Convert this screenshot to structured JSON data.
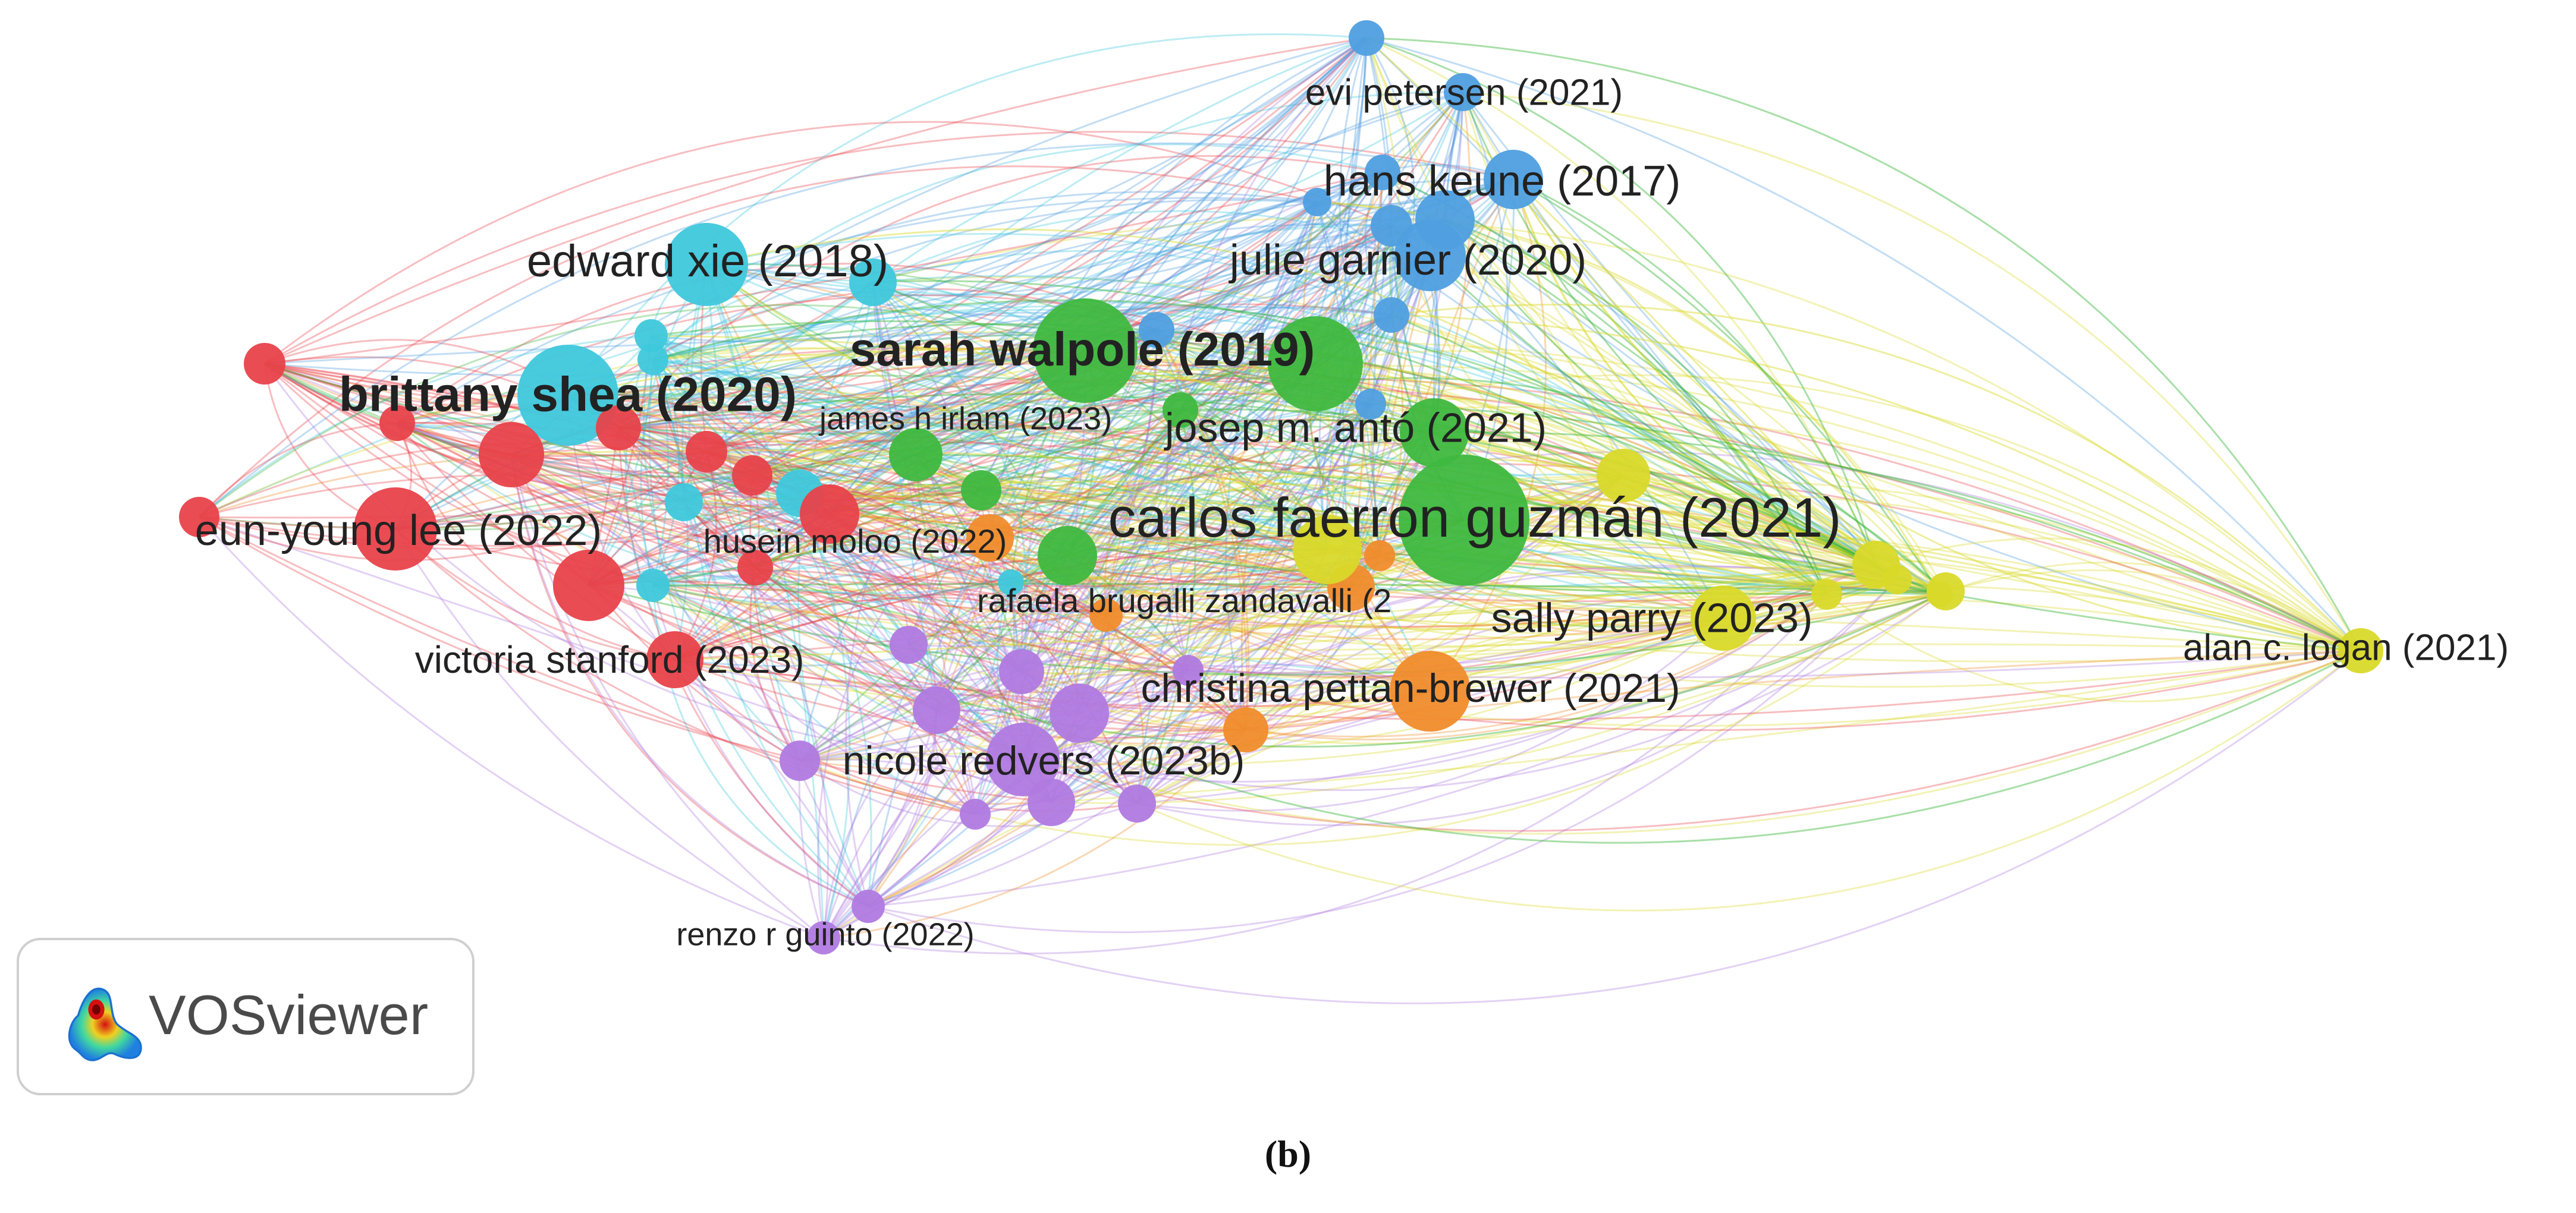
{
  "caption": "(b)",
  "brand": {
    "name": "VOSviewer",
    "icon": "vosviewer-heatmap-icon"
  },
  "clusters": {
    "red": "#e8424a",
    "cyan": "#3fc8dc",
    "blue": "#4f9fe0",
    "green": "#3fb83f",
    "yellow": "#d9d92a",
    "orange": "#f08c2c",
    "purple": "#b07ae0"
  },
  "labels": [
    {
      "text": "evi petersen (2021)",
      "cluster": "blue"
    },
    {
      "text": "hans keune (2017)",
      "cluster": "blue"
    },
    {
      "text": "julie garnier (2020)",
      "cluster": "blue"
    },
    {
      "text": "edward xie (2018)",
      "cluster": "cyan"
    },
    {
      "text": "sarah walpole (2019)",
      "cluster": "green"
    },
    {
      "text": "brittany shea (2020)",
      "cluster": "cyan"
    },
    {
      "text": "james h irlam (2023)",
      "cluster": "green"
    },
    {
      "text": "josep m. antó (2021)",
      "cluster": "green"
    },
    {
      "text": "carlos faerron guzmán (2021)",
      "cluster": "green"
    },
    {
      "text": "eun-young lee (2022)",
      "cluster": "red"
    },
    {
      "text": "husein moloo (2022)",
      "cluster": "red"
    },
    {
      "text": "rafaela brugalli zandavalli (2",
      "cluster": "orange"
    },
    {
      "text": "sally parry (2023)",
      "cluster": "yellow"
    },
    {
      "text": "alan c. logan (2021)",
      "cluster": "yellow"
    },
    {
      "text": "victoria stanford (2023)",
      "cluster": "red"
    },
    {
      "text": "christina pettan-brewer (2021)",
      "cluster": "orange"
    },
    {
      "text": "nicole redvers (2023b)",
      "cluster": "purple"
    },
    {
      "text": "renzo r guinto (2022)",
      "cluster": "purple"
    }
  ]
}
